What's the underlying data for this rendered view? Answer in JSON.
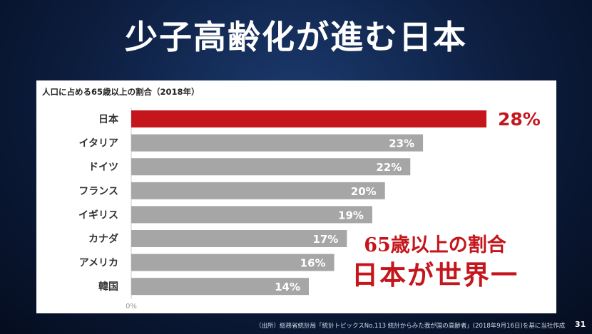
{
  "title": "少子高齢化が進む日本",
  "callout": {
    "line1": "65歳以上の割合",
    "line2": "日本が世界一"
  },
  "source": "（出所）総務省統計局「統計トピックスNo.113 統計からみた我が国の高齢者」(2018年9月16日)を基に当社作成",
  "page_number": "31",
  "colors": {
    "highlight": "#c4161c",
    "bar": "#a6a6a6"
  },
  "chart_data": {
    "type": "bar",
    "orientation": "horizontal",
    "title": "人口に占める65歳以上の割合（2018年）",
    "categories": [
      "日本",
      "イタリア",
      "ドイツ",
      "フランス",
      "イギリス",
      "カナダ",
      "アメリカ",
      "韓国"
    ],
    "values": [
      28,
      23,
      22,
      20,
      19,
      17,
      16,
      14
    ],
    "value_labels": [
      "28%",
      "23%",
      "22%",
      "20%",
      "19%",
      "17%",
      "16%",
      "14%"
    ],
    "highlight_index": 0,
    "axis_origin_label": "0%",
    "xlim": [
      0,
      28
    ],
    "grid": false,
    "legend": "none"
  }
}
